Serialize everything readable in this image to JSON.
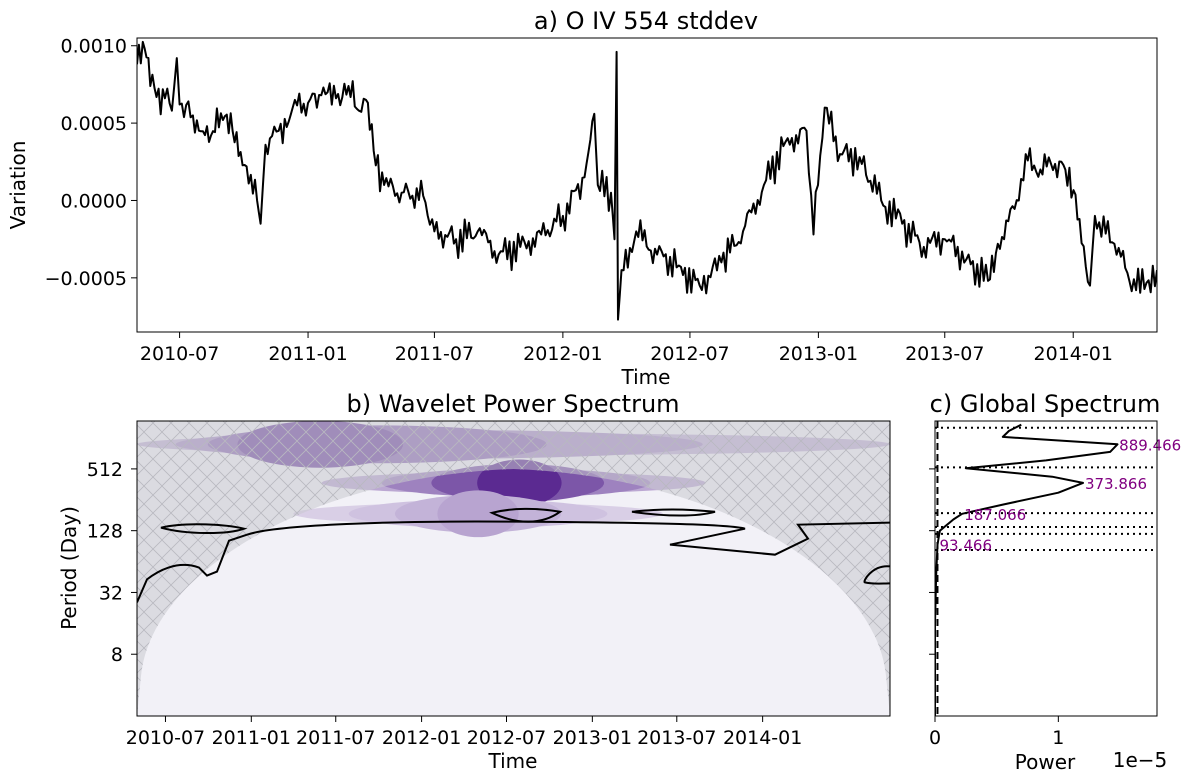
{
  "chart_data": [
    {
      "type": "line",
      "title": "a) O IV 554 stddev",
      "xlabel": "Time",
      "ylabel": "Variation",
      "xlim": [
        "2010-05-01",
        "2014-05-01"
      ],
      "ylim": [
        -0.00085,
        0.00105
      ],
      "x_ticks": [
        "2010-07",
        "2011-01",
        "2011-07",
        "2012-01",
        "2012-07",
        "2013-01",
        "2013-07",
        "2014-01"
      ],
      "y_ticks": [
        {
          "value": 0.001,
          "label": "0.0010"
        },
        {
          "value": 0.0005,
          "label": "0.0005"
        },
        {
          "value": 0.0,
          "label": "0.0000"
        },
        {
          "value": -0.0005,
          "label": "−0.0005"
        }
      ],
      "series": [
        {
          "name": "O IV 554 stddev",
          "color": "#000000",
          "points": [
            [
              "2010-05-01",
              0.00088
            ],
            [
              "2010-05-12",
              0.00098
            ],
            [
              "2010-05-20",
              0.00074
            ],
            [
              "2010-06-10",
              0.00066
            ],
            [
              "2010-06-20",
              0.00058
            ],
            [
              "2010-06-27",
              0.00092
            ],
            [
              "2010-07-01",
              0.00062
            ],
            [
              "2010-07-20",
              0.00055
            ],
            [
              "2010-08-15",
              0.00042
            ],
            [
              "2010-09-01",
              0.00052
            ],
            [
              "2010-09-15",
              0.00045
            ],
            [
              "2010-10-05",
              0.00022
            ],
            [
              "2010-10-20",
              0.0
            ],
            [
              "2010-10-25",
              -0.00015
            ],
            [
              "2010-11-01",
              0.00036
            ],
            [
              "2010-11-20",
              0.00045
            ],
            [
              "2010-12-10",
              0.0006
            ],
            [
              "2011-01-01",
              0.00063
            ],
            [
              "2011-01-20",
              0.00068
            ],
            [
              "2011-02-10",
              0.00066
            ],
            [
              "2011-02-28",
              0.00074
            ],
            [
              "2011-03-15",
              0.00058
            ],
            [
              "2011-03-25",
              0.00065
            ],
            [
              "2011-04-05",
              0.00032
            ],
            [
              "2011-04-20",
              0.0001
            ],
            [
              "2011-05-15",
              5e-05
            ],
            [
              "2011-06-15",
              3e-05
            ],
            [
              "2011-07-01",
              -0.0002
            ],
            [
              "2011-08-01",
              -0.00025
            ],
            [
              "2011-09-01",
              -0.0002
            ],
            [
              "2011-10-01",
              -0.00035
            ],
            [
              "2011-11-01",
              -0.0003
            ],
            [
              "2011-12-01",
              -0.00022
            ],
            [
              "2012-01-01",
              -0.0001
            ],
            [
              "2012-02-01",
              0.00015
            ],
            [
              "2012-02-15",
              0.00056
            ],
            [
              "2012-02-20",
              0.0001
            ],
            [
              "2012-03-10",
              5e-05
            ],
            [
              "2012-03-15",
              -0.00025
            ],
            [
              "2012-03-18",
              0.00096
            ],
            [
              "2012-03-20",
              -0.00077
            ],
            [
              "2012-03-25",
              -0.00045
            ],
            [
              "2012-04-15",
              -0.0002
            ],
            [
              "2012-05-15",
              -0.00035
            ],
            [
              "2012-06-15",
              -0.00042
            ],
            [
              "2012-07-15",
              -0.00055
            ],
            [
              "2012-08-15",
              -0.0004
            ],
            [
              "2012-09-15",
              -0.0002
            ],
            [
              "2012-10-15",
              0.0001
            ],
            [
              "2012-11-15",
              0.00038
            ],
            [
              "2012-12-15",
              0.00045
            ],
            [
              "2012-12-25",
              -0.00022
            ],
            [
              "2013-01-10",
              0.0006
            ],
            [
              "2013-02-01",
              0.0003
            ],
            [
              "2013-03-01",
              0.00028
            ],
            [
              "2013-04-01",
              0.0
            ],
            [
              "2013-05-01",
              -0.00015
            ],
            [
              "2013-06-01",
              -0.0003
            ],
            [
              "2013-07-01",
              -0.00025
            ],
            [
              "2013-08-01",
              -0.00038
            ],
            [
              "2013-09-01",
              -0.00052
            ],
            [
              "2013-09-15",
              -0.00028
            ],
            [
              "2013-10-15",
              0.0
            ],
            [
              "2013-10-25",
              0.0003
            ],
            [
              "2013-11-15",
              0.0002
            ],
            [
              "2013-12-15",
              0.00025
            ],
            [
              "2014-01-10",
              -0.00012
            ],
            [
              "2014-01-25",
              -0.00055
            ],
            [
              "2014-02-01",
              -0.0001
            ],
            [
              "2014-03-01",
              -0.00028
            ],
            [
              "2014-04-01",
              -0.00058
            ],
            [
              "2014-05-01",
              -0.00045
            ]
          ]
        }
      ]
    },
    {
      "type": "heatmap",
      "title": "b) Wavelet Power Spectrum",
      "xlabel": "Time",
      "ylabel": "Period (Day)",
      "colormap": "Purples",
      "y_scale": "log2",
      "xlim": [
        "2010-05-01",
        "2014-10-01"
      ],
      "ylim_period_days": [
        2,
        1500
      ],
      "x_ticks": [
        "2010-07",
        "2011-01",
        "2011-07",
        "2012-01",
        "2012-07",
        "2013-01",
        "2013-07",
        "2014-01"
      ],
      "y_ticks": [
        "8",
        "32",
        "128",
        "512"
      ],
      "power_bands": [
        {
          "period_days": 889,
          "start": "2010-05-01",
          "end": "2014-10-01",
          "peak_date": "2011-02-01",
          "strength": 0.85
        },
        {
          "period_days": 374,
          "start": "2011-06-01",
          "end": "2013-09-01",
          "peak_date": "2012-08-01",
          "strength": 1.0
        },
        {
          "period_days": 187,
          "start": "2011-04-01",
          "end": "2013-06-01",
          "peak_date": "2012-05-01",
          "strength": 0.35
        }
      ],
      "cone_of_influence": "hatched",
      "significance_contours": "black"
    },
    {
      "type": "line",
      "title": "c) Global Spectrum",
      "xlabel": "Power",
      "x_scale_label": "1e−5",
      "xlim": [
        0,
        1.8
      ],
      "x_ticks": [
        "0",
        "1"
      ],
      "ylim_period_days": [
        2,
        1500
      ],
      "series": [
        {
          "name": "global power",
          "color": "#000000",
          "points": [
            [
              2,
              0.0
            ],
            [
              16,
              0.0
            ],
            [
              48,
              0.01
            ],
            [
              93,
              0.02
            ],
            [
              110,
              0.03
            ],
            [
              128,
              0.04
            ],
            [
              165,
              0.15
            ],
            [
              187,
              0.22
            ],
            [
              230,
              0.55
            ],
            [
              300,
              1.0
            ],
            [
              374,
              1.2
            ],
            [
              430,
              0.95
            ],
            [
              520,
              0.25
            ],
            [
              620,
              0.9
            ],
            [
              750,
              1.42
            ],
            [
              889,
              1.48
            ],
            [
              1050,
              0.55
            ],
            [
              1200,
              0.6
            ],
            [
              1380,
              0.7
            ]
          ]
        }
      ],
      "significance": {
        "color": "#000000",
        "style": "dashed",
        "power": 0.02
      },
      "peaks": [
        {
          "period_days": 889.466,
          "label": "889.466"
        },
        {
          "period_days": 373.866,
          "label": "373.866"
        },
        {
          "period_days": 187.066,
          "label": "187.066"
        },
        {
          "period_days": 93.466,
          "label": "93.466"
        }
      ],
      "reference_periods_days": [
        1290,
        530,
        190,
        139,
        119,
        83
      ]
    }
  ]
}
